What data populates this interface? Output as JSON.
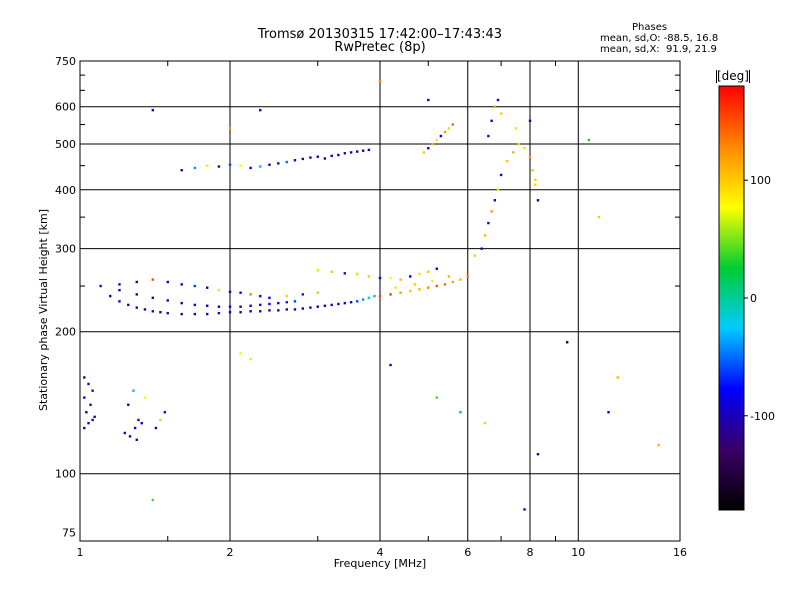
{
  "header": {
    "title_line1": "Tromsø 20130315 17:42:00–17:43:43",
    "title_line2": "RwPretec (8p)"
  },
  "phases_box": {
    "heading": "Phases",
    "line_o": "mean, sd,O: -88.5, 16.8",
    "line_x": "mean, sd,X:  91.9, 21.9"
  },
  "colorbar": {
    "unit_label": "[deg]",
    "ticks": [
      {
        "value": 100,
        "label": "100"
      },
      {
        "value": 0,
        "label": "0"
      },
      {
        "value": -100,
        "label": "-100"
      }
    ],
    "range": [
      -180,
      180
    ],
    "colormap": [
      "#000000",
      "#3a0066",
      "#0000ff",
      "#00ccff",
      "#00cc33",
      "#ffff00",
      "#ff8800",
      "#ff0000"
    ]
  },
  "chart_data": {
    "type": "scatter",
    "title": "Tromsø 20130315 17:42:00–17:43:43",
    "subtitle": "RwPretec (8p)",
    "xlabel": "Frequency [MHz]",
    "ylabel": "Stationary phase Virtual Height [km]",
    "x_scale": "log",
    "y_scale": "log",
    "xlim": [
      1,
      16
    ],
    "ylim": [
      72,
      750
    ],
    "x_ticks": [
      1,
      2,
      4,
      6,
      8,
      10,
      16
    ],
    "x_tick_labels": [
      "1",
      "2",
      "4",
      "6",
      "8",
      "10",
      "16"
    ],
    "y_ticks": [
      75,
      100,
      200,
      300,
      400,
      500,
      600,
      750
    ],
    "y_tick_labels": [
      "75",
      "100",
      "200",
      "300",
      "400",
      "500",
      "600",
      "750"
    ],
    "x_minor_ticks": [
      1.5,
      3,
      5,
      7,
      9
    ],
    "y_minor_ticks": [
      250,
      350,
      450,
      550,
      650,
      700
    ],
    "grid": true,
    "colorbar_label": "[deg]",
    "series": [
      {
        "x": [
          1.02,
          1.04,
          1.06,
          1.02,
          1.05,
          1.03,
          1.07,
          1.04,
          1.02,
          1.06
        ],
        "y": [
          160,
          155,
          150,
          145,
          140,
          135,
          132,
          128,
          125,
          130
        ],
        "phase": [
          -110,
          -100,
          -120,
          -90,
          -105,
          -115,
          -95,
          -110,
          -100,
          -108
        ]
      },
      {
        "x": [
          1.23,
          1.26,
          1.29,
          1.31,
          1.33,
          1.25,
          1.28,
          1.42,
          1.45,
          1.48,
          1.3,
          1.35
        ],
        "y": [
          122,
          120,
          125,
          130,
          128,
          140,
          150,
          125,
          130,
          135,
          118,
          145
        ],
        "phase": [
          -110,
          -100,
          -95,
          -120,
          -90,
          -105,
          -30,
          -110,
          60,
          -100,
          -115,
          80
        ]
      },
      {
        "x": [
          1.15,
          1.2,
          1.25,
          1.3,
          1.35,
          1.4,
          1.45,
          1.5,
          1.6,
          1.7,
          1.8,
          1.9,
          2.0,
          2.1,
          2.2,
          2.3,
          2.4,
          2.5,
          2.6,
          2.7,
          2.8,
          2.9,
          3.0,
          3.1,
          3.2,
          3.3,
          3.4,
          3.5,
          3.6,
          3.7,
          3.8,
          3.9
        ],
        "y": [
          238,
          232,
          228,
          225,
          223,
          221,
          220,
          219,
          218,
          218,
          218,
          219,
          220,
          220,
          221,
          221,
          222,
          222,
          223,
          223,
          224,
          225,
          226,
          227,
          228,
          229,
          230,
          231,
          232,
          234,
          236,
          238
        ],
        "phase": [
          -100,
          -105,
          -110,
          -108,
          -112,
          -110,
          -105,
          -108,
          -110,
          -112,
          -108,
          -110,
          -105,
          -100,
          -108,
          -110,
          -105,
          -108,
          -100,
          -95,
          -105,
          -100,
          -95,
          -90,
          -100,
          -95,
          -90,
          -85,
          -60,
          -40,
          -20,
          0
        ]
      },
      {
        "x": [
          1.2,
          1.3,
          1.4,
          1.5,
          1.6,
          1.7,
          1.8,
          1.9,
          2.0,
          2.1,
          2.2,
          2.3,
          2.4,
          2.5,
          2.6,
          2.7
        ],
        "y": [
          245,
          240,
          236,
          233,
          230,
          228,
          227,
          226,
          226,
          226,
          227,
          228,
          229,
          230,
          231,
          232
        ],
        "phase": [
          -100,
          -95,
          -105,
          -100,
          -95,
          -90,
          -100,
          -95,
          -90,
          -100,
          -95,
          -85,
          -80,
          -90,
          -70,
          -60
        ]
      },
      {
        "x": [
          1.1,
          1.2,
          1.3,
          1.4,
          1.5,
          1.6,
          1.7,
          1.8,
          1.9,
          2.0,
          2.1,
          2.2,
          2.3,
          2.4,
          2.6,
          2.8,
          3.0
        ],
        "y": [
          250,
          252,
          255,
          258,
          255,
          252,
          250,
          248,
          245,
          243,
          242,
          240,
          238,
          236,
          238,
          240,
          242
        ],
        "phase": [
          -100,
          -90,
          -95,
          150,
          -80,
          -95,
          -60,
          -100,
          90,
          -85,
          -90,
          40,
          -95,
          -80,
          100,
          -70,
          60
        ]
      },
      {
        "x": [
          4.0,
          4.2,
          4.4,
          4.6,
          4.8,
          5.0,
          5.2,
          5.4,
          5.6,
          5.8,
          6.0,
          4.3,
          4.7,
          5.1,
          5.5
        ],
        "y": [
          238,
          240,
          242,
          244,
          246,
          248,
          250,
          252,
          255,
          258,
          262,
          248,
          252,
          256,
          262
        ],
        "phase": [
          150,
          160,
          120,
          100,
          110,
          130,
          150,
          140,
          120,
          110,
          130,
          90,
          100,
          80,
          110
        ]
      },
      {
        "x": [
          3.0,
          3.2,
          3.4,
          3.6,
          3.8,
          4.0,
          4.2,
          4.4,
          4.6,
          4.8,
          5.0,
          5.2
        ],
        "y": [
          270,
          268,
          266,
          265,
          262,
          260,
          260,
          258,
          262,
          265,
          268,
          272
        ],
        "phase": [
          90,
          100,
          -80,
          95,
          100,
          -90,
          80,
          105,
          -85,
          90,
          100,
          -95
        ]
      },
      {
        "x": [
          1.6,
          1.7,
          1.8,
          1.9,
          2.0,
          2.1,
          2.2,
          2.3,
          2.4,
          2.5,
          2.6,
          2.7
        ],
        "y": [
          440,
          445,
          450,
          448,
          452,
          450,
          445,
          448,
          452,
          455,
          458,
          462
        ],
        "phase": [
          -100,
          -40,
          70,
          -110,
          -60,
          80,
          -100,
          -30,
          -110,
          -90,
          -50,
          -95
        ]
      },
      {
        "x": [
          2.8,
          2.9,
          3.0,
          3.1,
          3.2,
          3.3,
          3.4,
          3.5,
          3.6,
          3.7,
          3.8
        ],
        "y": [
          465,
          468,
          470,
          466,
          472,
          474,
          478,
          480,
          482,
          484,
          486
        ],
        "phase": [
          -110,
          -100,
          -95,
          -105,
          -90,
          -110,
          -100,
          -95,
          -105,
          -90,
          -100
        ]
      },
      {
        "x": [
          6.2,
          6.4,
          6.5,
          6.6,
          6.7,
          6.8,
          6.9,
          7.0,
          7.2,
          7.4,
          7.6,
          7.8,
          8.0,
          8.1,
          8.2
        ],
        "y": [
          290,
          300,
          320,
          340,
          360,
          380,
          400,
          430,
          460,
          480,
          500,
          490,
          470,
          440,
          410
        ],
        "phase": [
          100,
          -90,
          110,
          -100,
          120,
          -95,
          90,
          -105,
          100,
          110,
          95,
          90,
          120,
          100,
          95
        ]
      },
      {
        "x": [
          6.6,
          6.7,
          6.8,
          6.9,
          7.0,
          7.5,
          8.0,
          8.2,
          8.3
        ],
        "y": [
          520,
          560,
          600,
          620,
          580,
          540,
          560,
          420,
          380
        ],
        "phase": [
          -100,
          -90,
          120,
          -80,
          100,
          90,
          -100,
          95,
          -90
        ]
      },
      {
        "x": [
          4.9,
          5.0,
          5.1,
          5.2,
          5.3,
          5.4,
          5.5,
          5.6
        ],
        "y": [
          480,
          490,
          500,
          510,
          520,
          530,
          540,
          550
        ],
        "phase": [
          100,
          -90,
          110,
          90,
          -80,
          120,
          95,
          140
        ]
      },
      {
        "x": [
          1.4,
          2.0,
          2.1,
          2.2,
          4.0,
          4.2,
          5.0,
          5.2,
          5.8,
          7.8,
          8.3,
          10.5,
          11.0,
          12.0,
          14.5,
          1.4,
          2.3,
          6.5,
          9.5,
          11.5
        ],
        "y": [
          590,
          540,
          180,
          175,
          680,
          170,
          620,
          145,
          135,
          84,
          110,
          510,
          350,
          160,
          115,
          88,
          590,
          128,
          190,
          135
        ],
        "phase": [
          -100,
          120,
          80,
          90,
          130,
          -110,
          -90,
          40,
          20,
          -120,
          -100,
          30,
          100,
          110,
          110,
          40,
          -100,
          100,
          -150,
          -100
        ]
      }
    ]
  }
}
